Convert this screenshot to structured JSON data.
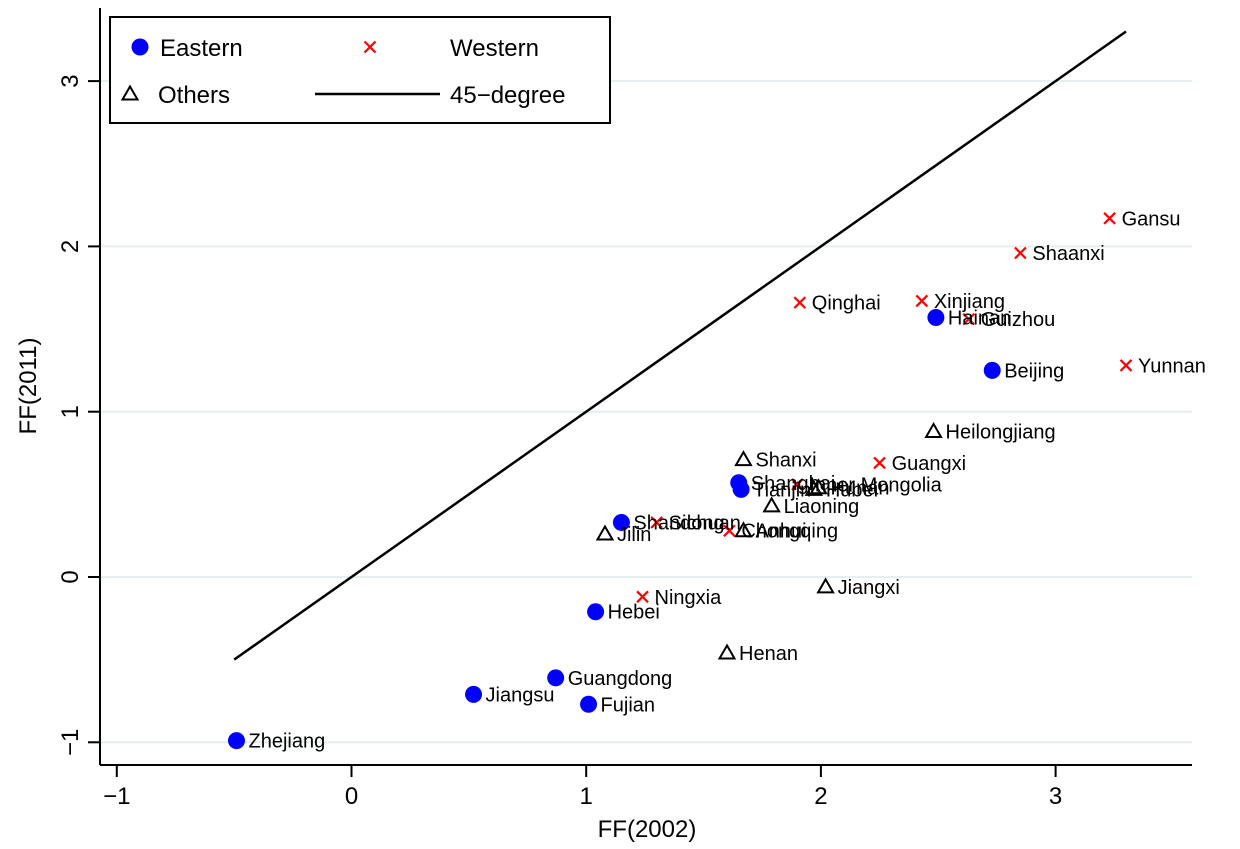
{
  "chart_data": {
    "type": "scatter",
    "title": "",
    "xlabel": "FF(2002)",
    "ylabel": "FF(2011)",
    "xlim": [
      -1.1,
      3.55
    ],
    "ylim": [
      -1.15,
      3.4
    ],
    "xticks": [
      -1,
      0,
      1,
      2,
      3
    ],
    "yticks": [
      -1,
      0,
      1,
      2,
      3
    ],
    "xtick_labels": [
      "−1",
      "0",
      "1",
      "2",
      "3"
    ],
    "ytick_labels": [
      "−1",
      "0",
      "1",
      "2",
      "3"
    ],
    "grid": "horizontal",
    "legend_position": "top-left",
    "colors": {
      "eastern": "#0000ff",
      "western": "#ff0000",
      "others": "#000000",
      "line": "#000000",
      "grid": "#e6eef0"
    },
    "legend": [
      {
        "name": "Eastern",
        "marker": "circle"
      },
      {
        "name": "Western",
        "marker": "x"
      },
      {
        "name": "Others",
        "marker": "triangle"
      },
      {
        "name": "45−degree",
        "marker": "line"
      }
    ],
    "line_45": {
      "name": "45−degree",
      "x": [
        -0.5,
        3.3
      ],
      "y": [
        -0.5,
        3.3
      ]
    },
    "series": [
      {
        "name": "Eastern",
        "marker": "circle",
        "points": [
          {
            "label": "Zhejiang",
            "x": -0.49,
            "y": -0.99
          },
          {
            "label": "Jiangsu",
            "x": 0.52,
            "y": -0.71
          },
          {
            "label": "Guangdong",
            "x": 0.87,
            "y": -0.61
          },
          {
            "label": "Fujian",
            "x": 1.01,
            "y": -0.77
          },
          {
            "label": "Hebei",
            "x": 1.04,
            "y": -0.21
          },
          {
            "label": "Shandong",
            "x": 1.15,
            "y": 0.33
          },
          {
            "label": "Shanghai",
            "x": 1.65,
            "y": 0.57
          },
          {
            "label": "Tianjin",
            "x": 1.66,
            "y": 0.53
          },
          {
            "label": "Hainan",
            "x": 2.49,
            "y": 1.57
          },
          {
            "label": "Beijing",
            "x": 2.73,
            "y": 1.25
          }
        ]
      },
      {
        "name": "Western",
        "marker": "x",
        "points": [
          {
            "label": "Ningxia",
            "x": 1.24,
            "y": -0.12
          },
          {
            "label": "Sichuan",
            "x": 1.3,
            "y": 0.33
          },
          {
            "label": "Chongqing",
            "x": 1.61,
            "y": 0.28
          },
          {
            "label": "Inner Mongolia",
            "x": 1.9,
            "y": 0.56
          },
          {
            "label": "Qinghai",
            "x": 1.91,
            "y": 1.66
          },
          {
            "label": "Guangxi",
            "x": 2.25,
            "y": 0.69
          },
          {
            "label": "Xinjiang",
            "x": 2.43,
            "y": 1.67
          },
          {
            "label": "Guizhou",
            "x": 2.63,
            "y": 1.56
          },
          {
            "label": "Shaanxi",
            "x": 2.85,
            "y": 1.96
          },
          {
            "label": "Gansu",
            "x": 3.23,
            "y": 2.17
          },
          {
            "label": "Yunnan",
            "x": 3.3,
            "y": 1.28
          }
        ]
      },
      {
        "name": "Others",
        "marker": "triangle",
        "points": [
          {
            "label": "Jilin",
            "x": 1.08,
            "y": 0.26
          },
          {
            "label": "Henan",
            "x": 1.6,
            "y": -0.46
          },
          {
            "label": "Anhui",
            "x": 1.67,
            "y": 0.28
          },
          {
            "label": "Shanxi",
            "x": 1.67,
            "y": 0.71
          },
          {
            "label": "Liaoning",
            "x": 1.79,
            "y": 0.43
          },
          {
            "label": "Hubei",
            "x": 1.97,
            "y": 0.53
          },
          {
            "label": "Hunan",
            "x": 1.99,
            "y": 0.54
          },
          {
            "label": "Jiangxi",
            "x": 2.02,
            "y": -0.06
          },
          {
            "label": "Heilongjiang",
            "x": 2.48,
            "y": 0.88
          }
        ]
      }
    ]
  }
}
